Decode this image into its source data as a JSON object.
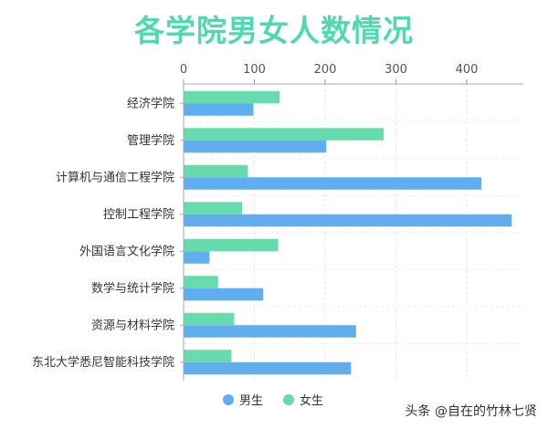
{
  "chart_data": {
    "type": "bar",
    "orientation": "horizontal",
    "title": "各学院男女人数情况",
    "categories": [
      "经济学院",
      "管理学院",
      "计算机与通信工程学院",
      "控制工程学院",
      "外国语言文化学院",
      "数学与统计学院",
      "资源与材料学院",
      "东北大学悉尼智能科技学院"
    ],
    "series": [
      {
        "name": "女生",
        "color": "#66dbac",
        "values": [
          135,
          282,
          90,
          82,
          133,
          48,
          71,
          67
        ]
      },
      {
        "name": "男生",
        "color": "#61aeef",
        "values": [
          98,
          201,
          420,
          463,
          36,
          112,
          243,
          236
        ]
      }
    ],
    "x_ticks": [
      0,
      100,
      200,
      300,
      400
    ],
    "xlim": [
      0,
      480
    ],
    "legend": {
      "position": "bottom",
      "items": [
        {
          "name": "男生",
          "color": "#61aeef"
        },
        {
          "name": "女生",
          "color": "#66dbac"
        }
      ]
    },
    "grid": true,
    "title_color": "#4fd9b0"
  },
  "watermark": "头条 @自在的竹林七贤"
}
